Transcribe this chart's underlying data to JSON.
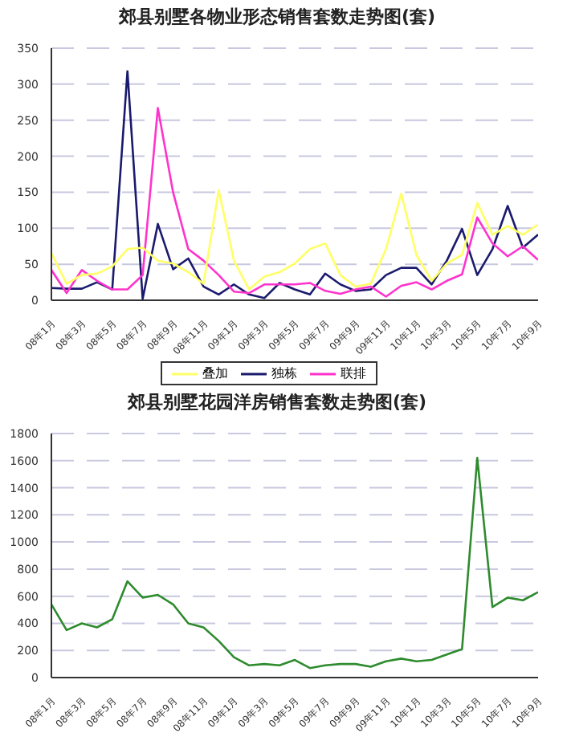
{
  "chart_data": [
    {
      "type": "line",
      "title": "郊县别墅各物业形态销售套数走势图(套)",
      "categories": [
        "08年1月",
        null,
        "08年3月",
        null,
        "08年5月",
        null,
        "08年7月",
        null,
        "08年9月",
        null,
        "08年11月",
        null,
        "09年1月",
        null,
        "09年3月",
        null,
        "09年5月",
        null,
        "09年7月",
        null,
        "09年9月",
        null,
        "09年11月",
        null,
        "10年1月",
        null,
        "10年3月",
        null,
        "10年5月",
        null,
        "10年7月",
        null,
        "10年9月"
      ],
      "series": [
        {
          "name": "独栋",
          "color": "#1a1a6e",
          "values": [
            17,
            16,
            16,
            25,
            15,
            318,
            2,
            106,
            43,
            58,
            19,
            8,
            22,
            8,
            3,
            24,
            15,
            8,
            37,
            22,
            13,
            15,
            35,
            45,
            45,
            22,
            55,
            99,
            35,
            71,
            131,
            73,
            91
          ]
        },
        {
          "name": "联排",
          "color": "#ff33cc",
          "values": [
            42,
            10,
            42,
            27,
            15,
            15,
            35,
            267,
            150,
            71,
            55,
            35,
            12,
            10,
            22,
            22,
            22,
            24,
            13,
            9,
            15,
            19,
            5,
            20,
            25,
            15,
            27,
            36,
            115,
            79,
            61,
            75,
            56
          ]
        },
        {
          "name": "叠加",
          "color": "#ffff66",
          "values": [
            65,
            23,
            35,
            37,
            47,
            71,
            73,
            55,
            51,
            39,
            23,
            153,
            55,
            15,
            33,
            39,
            51,
            71,
            79,
            35,
            19,
            23,
            71,
            148,
            63,
            27,
            51,
            63,
            135,
            91,
            103,
            91,
            105
          ]
        }
      ],
      "ylim": [
        0,
        350
      ],
      "yticks": [
        0,
        50,
        100,
        150,
        200,
        250,
        300,
        350
      ],
      "grid": "y",
      "legend": "bottom",
      "marker": "none"
    },
    {
      "type": "line",
      "title": "郊县别墅花园洋房销售套数走势图(套)",
      "categories": [
        "08年1月",
        null,
        "08年3月",
        null,
        "08年5月",
        null,
        "08年7月",
        null,
        "08年9月",
        null,
        "08年11月",
        null,
        "09年1月",
        null,
        "09年3月",
        null,
        "09年5月",
        null,
        "09年7月",
        null,
        "09年9月",
        null,
        "09年11月",
        null,
        "10年1月",
        null,
        "10年3月",
        null,
        "10年5月",
        null,
        "10年7月",
        null,
        "10年9月"
      ],
      "series": [
        {
          "color": "#2e8b2e",
          "values": [
            540,
            350,
            400,
            370,
            430,
            710,
            590,
            610,
            540,
            400,
            370,
            270,
            150,
            90,
            100,
            90,
            130,
            70,
            90,
            100,
            100,
            80,
            120,
            140,
            120,
            130,
            170,
            210,
            1620,
            520,
            590,
            570,
            630
          ]
        }
      ],
      "ylim": [
        0,
        1800
      ],
      "yticks": [
        0,
        200,
        400,
        600,
        800,
        1000,
        1200,
        1400,
        1600,
        1800
      ],
      "grid": "y",
      "marker": "none"
    }
  ]
}
